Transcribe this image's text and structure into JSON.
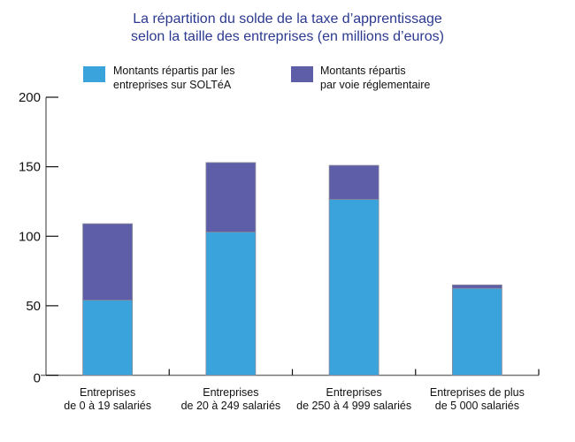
{
  "chart_data": {
    "type": "bar",
    "stacked": true,
    "title": "La répartition du solde de la taxe d’apprentissage selon la taille des entreprises (en millions d’euros)",
    "title_lines": [
      "La répartition du solde de la taxe d’apprentissage",
      "selon la taille des entreprises (en millions d’euros)"
    ],
    "categories": [
      [
        "Entreprises",
        "de 0 à 19 salariés"
      ],
      [
        "Entreprises",
        "de 20 à 249 salariés"
      ],
      [
        "Entreprises",
        "de 250 à 4 999 salariés"
      ],
      [
        "Entreprises de plus",
        "de 5 000 salariés"
      ]
    ],
    "series": [
      {
        "name": "Montants répartis par les entreprises sur SOLTéA",
        "name_lines": [
          "Montants répartis par les",
          "entreprises sur SOLTéA"
        ],
        "color": "#3ba3dc",
        "values": [
          54,
          103,
          126.5,
          62.5
        ]
      },
      {
        "name": "Montants répartis par voie réglementaire",
        "name_lines": [
          "Montants répartis",
          "par voie réglementaire"
        ],
        "color": "#5e5ea8",
        "values": [
          55,
          50,
          24.5,
          2.5
        ]
      }
    ],
    "ylim": [
      0,
      200
    ],
    "yticks": [
      0,
      50,
      100,
      150,
      200
    ],
    "xlabel": "",
    "ylabel": "",
    "grid": false,
    "legend": "top"
  }
}
